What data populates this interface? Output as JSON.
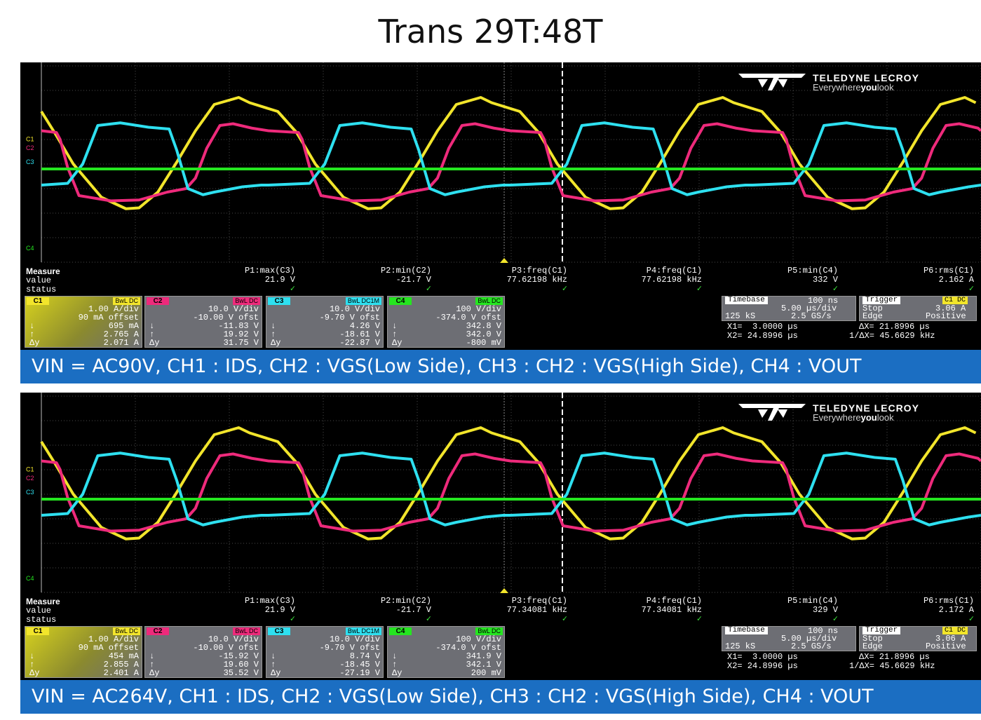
{
  "title": "Trans 29T:48T",
  "brand": {
    "name": "TELEDYNE LECROY",
    "tag_pre": "Everywhere",
    "tag_bold": "you",
    "tag_post": "look"
  },
  "colors": {
    "c1": "#f2e52b",
    "c2": "#ee2a7b",
    "c3": "#2ee0f0",
    "c4": "#25e620"
  },
  "measure_labels": [
    "Measure",
    "value",
    "status"
  ],
  "measure_params": [
    "P1:max(C3)",
    "P2:min(C2)",
    "P3:freq(C1)",
    "P4:freq(C1)",
    "P5:min(C4)",
    "P6:rms(C1)"
  ],
  "panels": [
    {
      "values": [
        "21.9 V",
        "-21.7 V",
        "77.62198 kHz",
        "77.62198 kHz",
        "332 V",
        "2.162 A"
      ],
      "ch1": {
        "tag": "C1",
        "bw": "BwL DC",
        "scale": "1.00 A/div",
        "offset": "90 mA offset",
        "min": "695 mA",
        "max": "2.765 A",
        "delta": "2.071 A"
      },
      "ch2": {
        "tag": "C2",
        "bw": "BwL DC",
        "scale": "10.0 V/div",
        "offset": "-10.00 V ofst",
        "min": "-11.83 V",
        "max": "19.92 V",
        "delta": "31.75 V"
      },
      "ch3": {
        "tag": "C3",
        "bw": "BwL DC1M",
        "scale": "10.0 V/div",
        "offset": "-9.70 V ofst",
        "min": "4.26 V",
        "max": "-18.61 V",
        "delta": "-22.87 V"
      },
      "ch4": {
        "tag": "C4",
        "bw": "BwL DC",
        "scale": "100 V/div",
        "offset": "-374.0 V ofst",
        "min": "342.8 V",
        "max": "342.0 V",
        "delta": "-800 mV"
      },
      "timebase": {
        "label": "Timebase",
        "value": "100 ns",
        "rate": "5.00 µs/div",
        "samples": "125 kS",
        "srate": "2.5 GS/s"
      },
      "trigger": {
        "label": "Trigger",
        "src": "C1 DC",
        "mode": "Stop",
        "level": "3.06 A",
        "type": "Edge",
        "slope": "Positive"
      },
      "cursors": {
        "x1": "X1=  3.0000 µs",
        "dx": "ΔX= 21.8996 µs",
        "x2": "X2= 24.8996 µs",
        "inv": "1/ΔX= 45.6629 kHz"
      },
      "caption": "VIN = AC90V, CH1 : IDS, CH2 : VGS(Low Side), CH3 : CH2 : VGS(High Side), CH4 : VOUT"
    },
    {
      "values": [
        "21.9 V",
        "-21.7 V",
        "77.34081 kHz",
        "77.34081 kHz",
        "329 V",
        "2.172 A"
      ],
      "ch1": {
        "tag": "C1",
        "bw": "BwL DC",
        "scale": "1.00 A/div",
        "offset": "90 mA offset",
        "min": "454 mA",
        "max": "2.855 A",
        "delta": "2.401 A"
      },
      "ch2": {
        "tag": "C2",
        "bw": "BwL DC",
        "scale": "10.0 V/div",
        "offset": "-10.00 V ofst",
        "min": "-15.92 V",
        "max": "19.60 V",
        "delta": "35.52 V"
      },
      "ch3": {
        "tag": "C3",
        "bw": "BwL DC1M",
        "scale": "10.0 V/div",
        "offset": "-9.70 V ofst",
        "min": "8.74 V",
        "max": "-18.45 V",
        "delta": "-27.19 V"
      },
      "ch4": {
        "tag": "C4",
        "bw": "BwL DC",
        "scale": "100 V/div",
        "offset": "-374.0 V ofst",
        "min": "341.9 V",
        "max": "342.1 V",
        "delta": "200 mV"
      },
      "timebase": {
        "label": "Timebase",
        "value": "100 ns",
        "rate": "5.00 µs/div",
        "samples": "125 kS",
        "srate": "2.5 GS/s"
      },
      "trigger": {
        "label": "Trigger",
        "src": "C1 DC",
        "mode": "Stop",
        "level": "3.06 A",
        "type": "Edge",
        "slope": "Positive"
      },
      "cursors": {
        "x1": "X1=  3.0000 µs",
        "dx": "ΔX= 21.8996 µs",
        "x2": "X2= 24.8996 µs",
        "inv": "1/ΔX= 45.6629 kHz"
      },
      "caption": "VIN = AC264V, CH1 : IDS, CH2 : VGS(Low Side), CH3 : CH2 : VGS(High Side), CH4 : VOUT"
    }
  ],
  "chart_data": {
    "type": "line",
    "title": "Trans 29T:48T",
    "xlabel": "",
    "ylabel": "",
    "x_unit": "µs",
    "xlim": [
      0,
      50
    ],
    "grid": true,
    "period_us": 12.88,
    "series": [
      {
        "name": "C1",
        "ch_label": "C1",
        "x": [
          0,
          1.5,
          2.5,
          3.5,
          5.0,
          6.3,
          7.0,
          8.0,
          9.0,
          10.0,
          11.0,
          12.3,
          12.88
        ],
        "div": [
          2.9,
          2.4,
          1.2,
          -0.6,
          -2.5,
          -3.15,
          -3.1,
          -2.2,
          -0.5,
          1.3,
          2.8,
          3.2,
          2.9
        ]
      },
      {
        "name": "C2",
        "ch_label": "C2",
        "x": [
          0,
          1.6,
          1.8,
          2.2,
          2.8,
          4.5,
          6.0,
          7.5,
          8.5,
          9.0,
          9.6,
          10.3,
          11.0,
          12.0,
          12.88
        ],
        "div": [
          1.3,
          1.2,
          0.8,
          -0.8,
          -2.4,
          -2.7,
          -2.65,
          -2.2,
          -2.0,
          -1.4,
          0.3,
          1.6,
          1.7,
          1.45,
          1.3
        ]
      },
      {
        "name": "C3",
        "ch_label": "C3",
        "x": [
          0,
          2.2,
          3.0,
          3.8,
          5.0,
          6.5,
          7.6,
          8.0,
          8.6,
          9.4,
          10.0,
          11.5,
          12.5,
          12.88
        ],
        "div": [
          -1.8,
          -1.7,
          -0.6,
          1.6,
          1.75,
          1.5,
          1.4,
          0.2,
          -2.0,
          -2.35,
          -2.2,
          -1.9,
          -1.8,
          -1.8
        ]
      },
      {
        "name": "C4",
        "ch_label": "C4",
        "x": [
          0,
          50
        ],
        "div": [
          0,
          0
        ]
      }
    ]
  }
}
